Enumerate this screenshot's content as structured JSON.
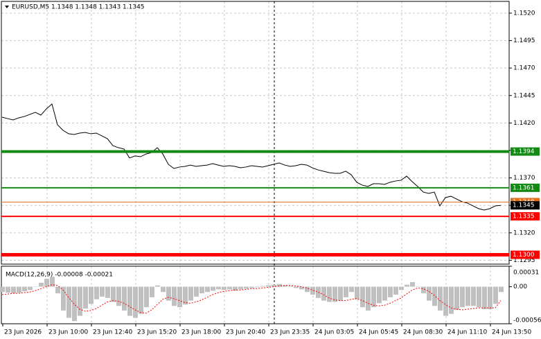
{
  "chart_data": [
    {
      "type": "line",
      "title": "EURUSD,M5  1.1348 1.1348 1.1343 1.1345",
      "categories": [
        "23 Jun 2026",
        null,
        null,
        null,
        null,
        null,
        null,
        null,
        "23 Jun 10:00",
        null,
        null,
        null,
        null,
        null,
        null,
        null,
        "23 Jun 12:40",
        null,
        null,
        null,
        null,
        null,
        null,
        null,
        "23 Jun 15:20",
        null,
        null,
        null,
        null,
        null,
        null,
        null,
        "23 Jun 18:00",
        null,
        null,
        null,
        null,
        null,
        null,
        null,
        "23 Jun 20:40",
        null,
        null,
        null,
        null,
        null,
        null,
        null,
        "23 Jun 23:35",
        null,
        null,
        null,
        null,
        null,
        null,
        null,
        "24 Jun 03:05",
        null,
        null,
        null,
        null,
        null,
        null,
        null,
        "24 Jun 05:45",
        null,
        null,
        null,
        null,
        null,
        null,
        null,
        "24 Jun 08:30",
        null,
        null,
        null,
        null,
        null,
        null,
        null,
        "24 Jun 11:10",
        null,
        null,
        null,
        null,
        null,
        null,
        null,
        "24 Jun 13:50",
        null,
        null
      ],
      "values": [
        1.14253,
        1.1424,
        1.14228,
        1.14247,
        1.14259,
        1.14278,
        1.14297,
        1.14272,
        1.14329,
        1.14373,
        1.14184,
        1.14133,
        1.14102,
        1.14095,
        1.14108,
        1.14114,
        1.14102,
        1.14108,
        1.14083,
        1.14057,
        1.13994,
        1.13975,
        1.13963,
        1.13881,
        1.139,
        1.13893,
        1.13918,
        1.13931,
        1.13975,
        1.13918,
        1.13824,
        1.13786,
        1.13799,
        1.13805,
        1.13817,
        1.13805,
        1.13811,
        1.13817,
        1.1383,
        1.13817,
        1.13805,
        1.13811,
        1.13805,
        1.13792,
        1.13799,
        1.13811,
        1.13805,
        1.13799,
        1.13811,
        1.13824,
        1.13836,
        1.13817,
        1.13805,
        1.13811,
        1.13824,
        1.13817,
        1.13792,
        1.13773,
        1.13761,
        1.13748,
        1.13742,
        1.13742,
        1.13761,
        1.13729,
        1.1366,
        1.13634,
        1.13622,
        1.13647,
        1.13647,
        1.13641,
        1.1366,
        1.13672,
        1.13679,
        1.13716,
        1.13666,
        1.13622,
        1.13571,
        1.13559,
        1.13571,
        1.13445,
        1.13521,
        1.13533,
        1.13508,
        1.13483,
        1.1347,
        1.13445,
        1.1342,
        1.13407,
        1.1342,
        1.13445,
        1.1345
      ],
      "color": "#000000",
      "ylim": [
        1.12915,
        1.15307
      ],
      "yticks": [
        {
          "value": 1.152,
          "label": "1.1520"
        },
        1.1495,
        {
          "value": 1.147,
          "label": "1.1470"
        },
        1.1445,
        {
          "value": 1.142,
          "label": "1.1420"
        },
        1.1395,
        {
          "value": 1.137,
          "label": "1.1370"
        },
        1.1345,
        {
          "value": 1.132,
          "label": "1.1320"
        },
        1.1295
      ],
      "grid": true,
      "levels": [
        {
          "value": 1.1394,
          "color": "#138a13",
          "width": 4
        },
        {
          "value": 1.1361,
          "color": "#138a13",
          "width": 2
        },
        {
          "value": 1.1348,
          "color": "#e0701e",
          "width": 1
        },
        {
          "value": 1.1335,
          "color": "#ff0000",
          "width": 2
        },
        {
          "value": 1.13,
          "label": "1.1300",
          "color": "#ff0000",
          "width": 5
        }
      ],
      "price_marker": 1.1345
    },
    {
      "type": "bar",
      "title": "MACD(12,26,9) -0.00008 -0.00021",
      "ylim": [
        -0.00056,
        0.00031
      ],
      "yticks": [
        0.00031,
        {
          "value": 0,
          "label": "0.00"
        },
        -0.00056
      ],
      "series": [
        {
          "kind": "bar",
          "color": "#c0c0c0",
          "values": [
            -8e-05,
            -9e-05,
            -0.0001,
            -9e-05,
            -7e-05,
            -5e-05,
            0,
            6e-05,
            0.00012,
            0.00015,
            -0.0001,
            -0.00036,
            -0.00047,
            -0.00052,
            -0.00044,
            -0.00033,
            -0.00026,
            -0.00019,
            -0.00015,
            -0.00017,
            -0.00023,
            -0.00029,
            -0.00036,
            -0.00044,
            -0.00047,
            -0.00041,
            -0.00031,
            -0.00016,
            2e-05,
            -8e-05,
            -0.00021,
            -0.00029,
            -0.00031,
            -0.00027,
            -0.00021,
            -0.00015,
            -0.0001,
            -8e-05,
            -6e-05,
            -4e-05,
            -5e-05,
            -4e-05,
            -6e-05,
            -4e-05,
            -3e-05,
            -2e-05,
            -1e-05,
            1e-05,
            2e-05,
            3e-05,
            4e-05,
            2e-05,
            1e-05,
            -2e-05,
            -4e-05,
            -8e-05,
            -0.00012,
            -0.00017,
            -0.00021,
            -0.00023,
            -0.00023,
            -0.00021,
            -0.00016,
            -8e-05,
            -0.00019,
            -0.00031,
            -0.00036,
            -0.00031,
            -0.00025,
            -0.00021,
            -0.00016,
            -0.00012,
            -5e-05,
            3e-05,
            7e-05,
            0,
            -0.0001,
            -0.00021,
            -0.00029,
            -0.00036,
            -0.00044,
            -0.00041,
            -0.00035,
            -0.00031,
            -0.00029,
            -0.00029,
            -0.00031,
            -0.00034,
            -0.00034,
            -0.00026,
            -8e-05
          ]
        },
        {
          "kind": "line",
          "color": "#ff0000",
          "values": [
            -0.00012,
            -0.00011,
            -0.0001,
            -0.0001,
            -9e-05,
            -8e-05,
            -6e-05,
            -3e-05,
            0,
            3e-05,
            2e-05,
            -5e-05,
            -0.00016,
            -0.00026,
            -0.00034,
            -0.00037,
            -0.00036,
            -0.00033,
            -0.00028,
            -0.00023,
            -0.00021,
            -0.00022,
            -0.00025,
            -0.0003,
            -0.00035,
            -0.00039,
            -0.0004,
            -0.00035,
            -0.00027,
            -0.00019,
            -0.00016,
            -0.00018,
            -0.00021,
            -0.00024,
            -0.00025,
            -0.00023,
            -0.0002,
            -0.00016,
            -0.00012,
            -9e-05,
            -7e-05,
            -6e-05,
            -5e-05,
            -5e-05,
            -4e-05,
            -3e-05,
            -3e-05,
            -2e-05,
            -1e-05,
            0,
            1e-05,
            2e-05,
            2e-05,
            1e-05,
            0,
            -2e-05,
            -5e-05,
            -8e-05,
            -0.00012,
            -0.00017,
            -0.0002,
            -0.00021,
            -0.00021,
            -0.00019,
            -0.00018,
            -0.00021,
            -0.00025,
            -0.00028,
            -0.00029,
            -0.00028,
            -0.00025,
            -0.00021,
            -0.00017,
            -0.00011,
            -5e-05,
            -2e-05,
            -3e-05,
            -7e-05,
            -0.00013,
            -0.00021,
            -0.00027,
            -0.00032,
            -0.00034,
            -0.00035,
            -0.00034,
            -0.00033,
            -0.00032,
            -0.00032,
            -0.00032,
            -0.00032,
            -0.00021
          ]
        }
      ]
    }
  ]
}
